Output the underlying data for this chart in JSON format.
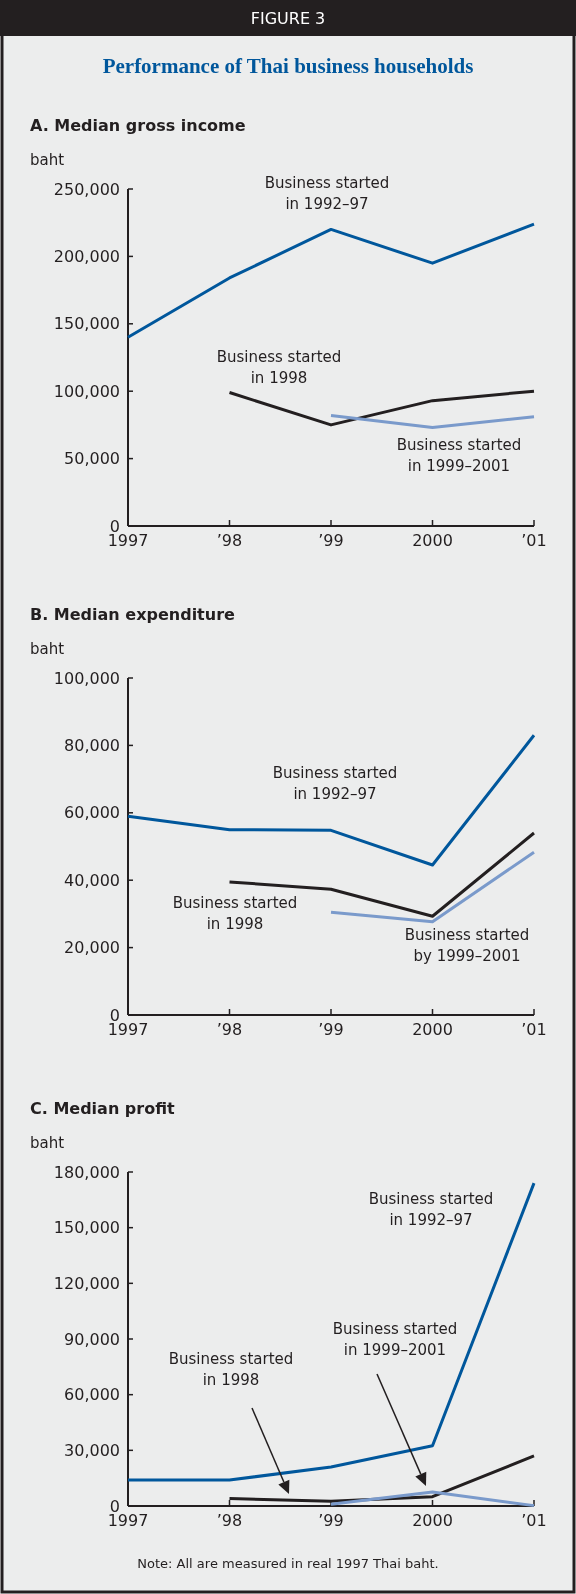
{
  "chart_data": [
    {
      "type": "line",
      "title": "A. Median gross income",
      "ylabel": "baht",
      "categories": [
        "1997",
        "’98",
        "’99",
        "2000",
        "’01"
      ],
      "ylim": [
        0,
        250000
      ],
      "yticks": [
        {
          "value": 0,
          "label": "0"
        },
        {
          "value": 50000,
          "label": "50,000"
        },
        {
          "value": 100000,
          "label": "100,000"
        },
        {
          "value": 150000,
          "label": "150,000"
        },
        {
          "value": 200000,
          "label": "200,000"
        },
        {
          "value": 250000,
          "label": "250,000"
        }
      ],
      "grid": false,
      "annotations": [
        "FIGURE 3",
        "Performance of Thai business households"
      ],
      "series": [
        {
          "name": "Business started in 1992–97",
          "color": "#00579c",
          "values": [
            140000,
            184000,
            220000,
            195000,
            224000
          ]
        },
        {
          "name": "Business started in 1998",
          "color": "#231f20",
          "values": [
            null,
            99000,
            75000,
            93000,
            100000
          ]
        },
        {
          "name": "Business started in 1999–2001",
          "color": "#7a9acb",
          "values": [
            null,
            null,
            82000,
            73000,
            81000
          ]
        }
      ]
    },
    {
      "type": "line",
      "title": "B. Median expenditure",
      "ylabel": "baht",
      "categories": [
        "1997",
        "’98",
        "’99",
        "2000",
        "’01"
      ],
      "ylim": [
        0,
        100000
      ],
      "yticks": [
        {
          "value": 0,
          "label": "0"
        },
        {
          "value": 20000,
          "label": "20,000"
        },
        {
          "value": 40000,
          "label": "40,000"
        },
        {
          "value": 60000,
          "label": "60,000"
        },
        {
          "value": 80000,
          "label": "80,000"
        },
        {
          "value": 100000,
          "label": "100,000"
        }
      ],
      "grid": false,
      "series": [
        {
          "name": "Business started in 1992–97",
          "color": "#00579c",
          "values": [
            59000,
            55000,
            54800,
            44500,
            83000
          ]
        },
        {
          "name": "Business started in 1998",
          "color": "#231f20",
          "values": [
            null,
            39500,
            37300,
            29300,
            54000
          ]
        },
        {
          "name": "Business started by 1999–2001",
          "color": "#7a9acb",
          "values": [
            null,
            null,
            30500,
            27700,
            48300
          ]
        }
      ]
    },
    {
      "type": "line",
      "title": "C. Median profit",
      "ylabel": "baht",
      "categories": [
        "1997",
        "’98",
        "’99",
        "2000",
        "’01"
      ],
      "ylim": [
        0,
        180000
      ],
      "yticks": [
        {
          "value": 0,
          "label": "0"
        },
        {
          "value": 30000,
          "label": "30,000"
        },
        {
          "value": 60000,
          "label": "60,000"
        },
        {
          "value": 90000,
          "label": "90,000"
        },
        {
          "value": 120000,
          "label": "120,000"
        },
        {
          "value": 150000,
          "label": "150,000"
        },
        {
          "value": 180000,
          "label": "180,000"
        }
      ],
      "grid": false,
      "annotations": [
        "Note: All are measured in real 1997 Thai baht.",
        "Business started in 1999–2001"
      ],
      "series": [
        {
          "name": "Business started in 1992–97",
          "color": "#00579c",
          "values": [
            14000,
            14000,
            21000,
            32500,
            174000
          ]
        },
        {
          "name": "Business started in 1998",
          "color": "#231f20",
          "values": [
            null,
            4000,
            2500,
            5000,
            27000
          ]
        },
        {
          "color": "#7a9acb",
          "values": [
            null,
            null,
            1000,
            7500,
            200
          ]
        }
      ]
    }
  ]
}
